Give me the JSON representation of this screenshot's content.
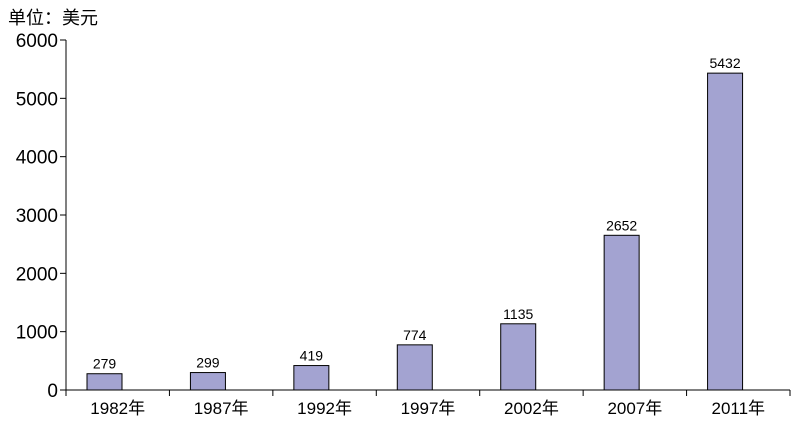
{
  "chart_data": {
    "type": "bar",
    "unit_label": "单位：美元",
    "categories": [
      "1982年",
      "1987年",
      "1992年",
      "1997年",
      "2002年",
      "2007年",
      "2011年"
    ],
    "values": [
      279,
      299,
      419,
      774,
      1135,
      2652,
      5432
    ],
    "data_labels": [
      "279",
      "299",
      "419",
      "774",
      "1135",
      "2652",
      "5432"
    ],
    "yticks": [
      "0",
      "1000",
      "2000",
      "3000",
      "4000",
      "5000",
      "6000"
    ],
    "ylim": [
      0,
      6000
    ],
    "grid": false,
    "legend": "none",
    "bar_color": "#a3a3d1",
    "bar_stroke": "#000000"
  }
}
